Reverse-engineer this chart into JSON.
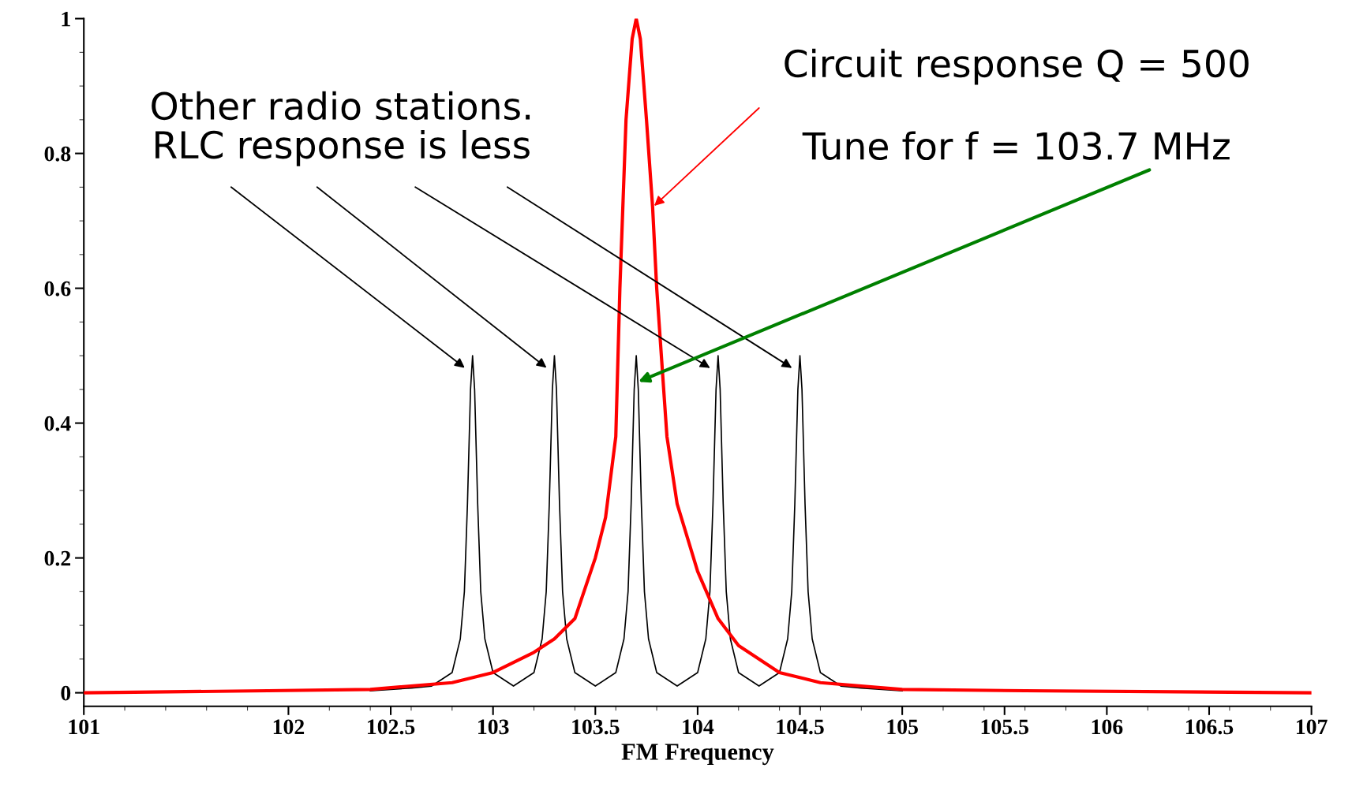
{
  "chart_data": {
    "type": "line",
    "xlabel": "FM Frequency",
    "xlim": [
      101,
      107
    ],
    "xticks": [
      101,
      102,
      102.5,
      103,
      103.5,
      104,
      104.5,
      105,
      105.5,
      106,
      106.5,
      107
    ],
    "ylim": [
      -0.02,
      1
    ],
    "yticks": [
      0,
      0.2,
      0.4,
      0.6,
      0.8,
      1
    ],
    "grid": false,
    "legend": false,
    "marker": "none",
    "line_style": "solid",
    "series": [
      {
        "color": "#ff0000",
        "x": [
          101,
          101.9,
          102.4,
          102.8,
          103.0,
          103.2,
          103.3,
          103.4,
          103.5,
          103.55,
          103.6,
          103.62,
          103.65,
          103.68,
          103.7,
          103.72,
          103.75,
          103.78,
          103.8,
          103.85,
          103.9,
          104.0,
          104.1,
          104.2,
          104.4,
          104.6,
          105.0,
          105.6,
          107
        ],
        "values": [
          0,
          0.003,
          0.005,
          0.015,
          0.03,
          0.06,
          0.08,
          0.11,
          0.2,
          0.26,
          0.38,
          0.6,
          0.85,
          0.97,
          1.0,
          0.97,
          0.85,
          0.72,
          0.6,
          0.38,
          0.28,
          0.18,
          0.11,
          0.07,
          0.03,
          0.015,
          0.005,
          0.003,
          0
        ]
      },
      {
        "color": "#000000",
        "x": [
          102.4,
          102.6,
          102.7,
          102.8,
          102.84,
          102.86,
          102.875,
          102.89,
          102.9,
          102.91,
          102.925,
          102.94,
          102.96,
          103.0,
          103.1,
          103.2,
          103.24,
          103.26,
          103.275,
          103.29,
          103.3,
          103.31,
          103.325,
          103.34,
          103.36,
          103.4,
          103.5,
          103.6,
          103.64,
          103.66,
          103.675,
          103.69,
          103.7,
          103.71,
          103.725,
          103.74,
          103.76,
          103.8,
          103.9,
          104.0,
          104.04,
          104.06,
          104.075,
          104.09,
          104.1,
          104.11,
          104.125,
          104.14,
          104.16,
          104.2,
          104.3,
          104.4,
          104.44,
          104.46,
          104.475,
          104.49,
          104.5,
          104.51,
          104.525,
          104.54,
          104.56,
          104.6,
          104.7,
          104.8,
          105.0
        ],
        "values": [
          0.003,
          0.007,
          0.01,
          0.03,
          0.08,
          0.15,
          0.28,
          0.45,
          0.5,
          0.45,
          0.28,
          0.15,
          0.08,
          0.03,
          0.01,
          0.03,
          0.08,
          0.15,
          0.28,
          0.45,
          0.5,
          0.45,
          0.28,
          0.15,
          0.08,
          0.03,
          0.01,
          0.03,
          0.08,
          0.15,
          0.28,
          0.45,
          0.5,
          0.45,
          0.28,
          0.15,
          0.08,
          0.03,
          0.01,
          0.03,
          0.08,
          0.15,
          0.28,
          0.45,
          0.5,
          0.45,
          0.28,
          0.15,
          0.08,
          0.03,
          0.01,
          0.03,
          0.08,
          0.15,
          0.28,
          0.45,
          0.5,
          0.45,
          0.28,
          0.15,
          0.08,
          0.03,
          0.01,
          0.007,
          0.003
        ]
      }
    ],
    "annotations": [
      "Other radio stations.\nRLC response is less",
      {
        "text": "Circuit response Q = 500",
        "x": 103.78,
        "y": 0.72
      },
      "Tune for f = 103.7 MHz"
    ]
  }
}
